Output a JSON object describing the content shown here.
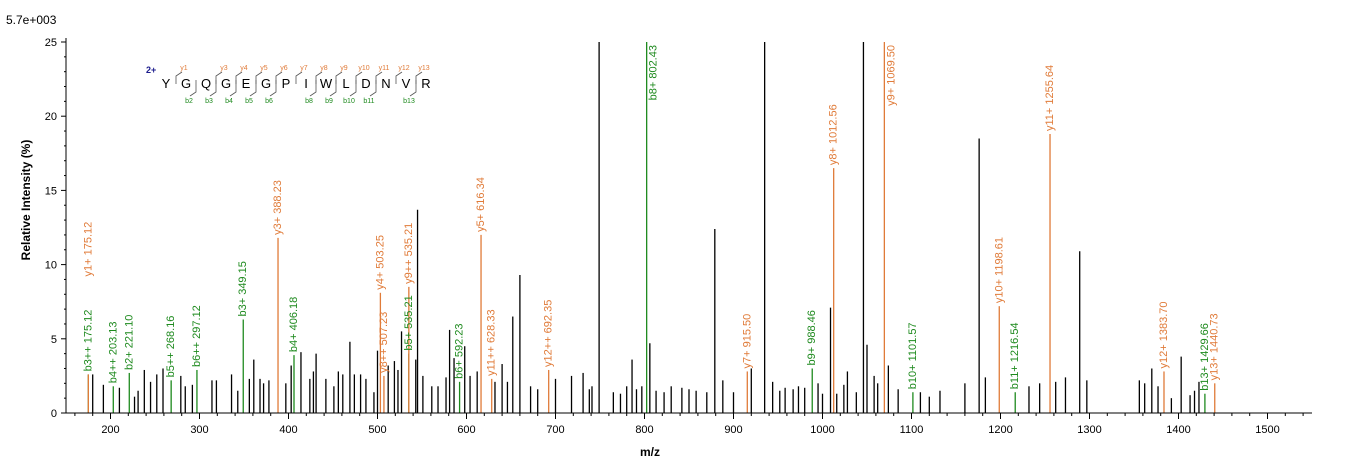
{
  "chart_data": {
    "type": "bar",
    "scale_label": "5.7e+003",
    "xlabel": "m/z",
    "ylabel": "Relative  Intensity (%)",
    "xlim": [
      150,
      1550
    ],
    "ylim": [
      0,
      25
    ],
    "xticks": [
      200,
      300,
      400,
      500,
      600,
      700,
      800,
      900,
      1000,
      1100,
      1200,
      1300,
      1400,
      1500
    ],
    "yticks": [
      0,
      5,
      10,
      15,
      20,
      25
    ],
    "colors": {
      "b_ion": "#1e8a1e",
      "y_ion": "#e07b39",
      "unassigned": "#000000",
      "charge": "#1a1a8c"
    },
    "sequence": {
      "charge": "2+",
      "residues": [
        "Y",
        "G",
        "Q",
        "G",
        "E",
        "G",
        "P",
        "I",
        "W",
        "L",
        "D",
        "N",
        "V",
        "R"
      ],
      "b_labels": [
        "b2",
        "b3",
        "b4",
        "b5",
        "b6",
        "b8",
        "b9",
        "b10",
        "b11",
        "b13"
      ],
      "b_positions": [
        2,
        3,
        4,
        5,
        6,
        8,
        9,
        10,
        11,
        13
      ],
      "y_labels": [
        "y13",
        "y12",
        "y11",
        "y10",
        "y9",
        "y8",
        "y7",
        "y6",
        "y5",
        "y4",
        "y3",
        "y1"
      ],
      "y_positions": [
        1,
        2,
        3,
        4,
        5,
        6,
        7,
        8,
        9,
        10,
        11,
        13
      ]
    },
    "annotated_peaks": [
      {
        "mz": 175.12,
        "intensity": 2.6,
        "ion": "b",
        "label": "b3++ 175.12"
      },
      {
        "mz": 175.12,
        "intensity": 2.6,
        "ion": "y",
        "label": "y1+ 175.12",
        "label_height": 9.0
      },
      {
        "mz": 203.13,
        "intensity": 1.8,
        "ion": "b",
        "label": "b4++ 203.13"
      },
      {
        "mz": 221.1,
        "intensity": 2.7,
        "ion": "b",
        "label": "b2+ 221.10"
      },
      {
        "mz": 268.16,
        "intensity": 2.2,
        "ion": "b",
        "label": "b5++ 268.16"
      },
      {
        "mz": 297.12,
        "intensity": 2.9,
        "ion": "b",
        "label": "b6++ 297.12"
      },
      {
        "mz": 349.15,
        "intensity": 6.3,
        "ion": "b",
        "label": "b3+ 349.15"
      },
      {
        "mz": 388.23,
        "intensity": 11.8,
        "ion": "y",
        "label": "y3+ 388.23"
      },
      {
        "mz": 406.18,
        "intensity": 3.9,
        "ion": "b",
        "label": "b4+ 406.18"
      },
      {
        "mz": 503.25,
        "intensity": 8.1,
        "ion": "y",
        "label": "y4+ 503.25"
      },
      {
        "mz": 507.23,
        "intensity": 2.5,
        "ion": "y",
        "label": "y8++ 507.23"
      },
      {
        "mz": 535.21,
        "intensity": 4.0,
        "ion": "b",
        "label": "b5+ 535.21"
      },
      {
        "mz": 535.21,
        "intensity": 8.5,
        "ion": "y",
        "label": "y9++ 535.21"
      },
      {
        "mz": 592.23,
        "intensity": 2.1,
        "ion": "b",
        "label": "b6+ 592.23"
      },
      {
        "mz": 616.34,
        "intensity": 12.0,
        "ion": "y",
        "label": "y5+ 616.34"
      },
      {
        "mz": 628.33,
        "intensity": 2.3,
        "ion": "y",
        "label": "y11++ 628.33"
      },
      {
        "mz": 692.35,
        "intensity": 2.9,
        "ion": "y",
        "label": "y12++ 692.35"
      },
      {
        "mz": 802.43,
        "intensity": 25.0,
        "ion": "b",
        "label": "b8+ 802.43"
      },
      {
        "mz": 915.5,
        "intensity": 2.8,
        "ion": "y",
        "label": "y7+ 915.50"
      },
      {
        "mz": 988.46,
        "intensity": 3.0,
        "ion": "b",
        "label": "b9+ 988.46"
      },
      {
        "mz": 1012.56,
        "intensity": 16.5,
        "ion": "y",
        "label": "y8+ 1012.56"
      },
      {
        "mz": 1069.5,
        "intensity": 25.0,
        "ion": "y",
        "label": "y9+ 1069.50"
      },
      {
        "mz": 1101.57,
        "intensity": 1.4,
        "ion": "b",
        "label": "b10+ 1101.57"
      },
      {
        "mz": 1198.61,
        "intensity": 7.2,
        "ion": "y",
        "label": "y10+ 1198.61"
      },
      {
        "mz": 1216.54,
        "intensity": 1.4,
        "ion": "b",
        "label": "b11+ 1216.54"
      },
      {
        "mz": 1255.64,
        "intensity": 18.8,
        "ion": "y",
        "label": "y11+ 1255.64"
      },
      {
        "mz": 1383.7,
        "intensity": 2.8,
        "ion": "y",
        "label": "y12+ 1383.70"
      },
      {
        "mz": 1429.66,
        "intensity": 1.3,
        "ion": "b",
        "label": "b13+ 1429.66"
      },
      {
        "mz": 1440.73,
        "intensity": 2.0,
        "ion": "y",
        "label": "y13+ 1440.73"
      }
    ],
    "unassigned_peaks": [
      [
        180,
        2.6
      ],
      [
        192,
        1.9
      ],
      [
        210,
        1.7
      ],
      [
        227,
        1.1
      ],
      [
        231,
        1.5
      ],
      [
        238,
        2.9
      ],
      [
        245,
        2.1
      ],
      [
        252,
        2.6
      ],
      [
        259,
        3.0
      ],
      [
        279,
        2.5
      ],
      [
        284,
        1.8
      ],
      [
        292,
        1.9
      ],
      [
        314,
        2.2
      ],
      [
        319,
        2.2
      ],
      [
        336,
        2.6
      ],
      [
        343,
        1.5
      ],
      [
        356,
        2.3
      ],
      [
        361,
        3.6
      ],
      [
        368,
        2.3
      ],
      [
        372,
        2.0
      ],
      [
        378,
        2.2
      ],
      [
        397,
        2.0
      ],
      [
        403,
        3.2
      ],
      [
        414,
        4.1
      ],
      [
        424,
        2.3
      ],
      [
        428,
        2.8
      ],
      [
        431,
        4.0
      ],
      [
        442,
        2.3
      ],
      [
        451,
        1.8
      ],
      [
        456,
        2.8
      ],
      [
        461,
        2.6
      ],
      [
        469,
        4.8
      ],
      [
        474,
        2.6
      ],
      [
        481,
        2.6
      ],
      [
        487,
        2.3
      ],
      [
        496,
        1.4
      ],
      [
        500,
        4.2
      ],
      [
        512,
        3.2
      ],
      [
        519,
        3.5
      ],
      [
        523,
        2.9
      ],
      [
        527,
        5.5
      ],
      [
        543,
        3.6
      ],
      [
        545,
        13.7
      ],
      [
        551,
        2.5
      ],
      [
        561,
        1.8
      ],
      [
        568,
        1.8
      ],
      [
        577,
        2.4
      ],
      [
        581,
        5.6
      ],
      [
        586,
        3.7
      ],
      [
        598,
        4.5
      ],
      [
        604,
        2.5
      ],
      [
        612,
        2.8
      ],
      [
        632,
        2.1
      ],
      [
        640,
        3.3
      ],
      [
        646,
        2.1
      ],
      [
        652,
        6.5
      ],
      [
        660,
        9.3
      ],
      [
        672,
        1.8
      ],
      [
        680,
        1.6
      ],
      [
        700,
        2.3
      ],
      [
        718,
        2.5
      ],
      [
        731,
        2.7
      ],
      [
        738,
        1.6
      ],
      [
        741,
        1.8
      ],
      [
        749,
        25.0
      ],
      [
        765,
        1.4
      ],
      [
        773,
        1.3
      ],
      [
        780,
        1.8
      ],
      [
        786,
        3.6
      ],
      [
        791,
        1.6
      ],
      [
        797,
        1.8
      ],
      [
        806,
        4.7
      ],
      [
        813,
        1.5
      ],
      [
        822,
        1.4
      ],
      [
        830,
        1.8
      ],
      [
        842,
        1.7
      ],
      [
        850,
        1.6
      ],
      [
        858,
        1.5
      ],
      [
        870,
        1.4
      ],
      [
        879,
        12.4
      ],
      [
        888,
        2.2
      ],
      [
        900,
        1.4
      ],
      [
        920,
        3.0
      ],
      [
        935,
        25.0
      ],
      [
        944,
        2.1
      ],
      [
        952,
        1.5
      ],
      [
        958,
        1.7
      ],
      [
        967,
        1.6
      ],
      [
        973,
        1.8
      ],
      [
        980,
        1.7
      ],
      [
        995,
        2.0
      ],
      [
        1000,
        1.3
      ],
      [
        1009,
        7.1
      ],
      [
        1016,
        1.3
      ],
      [
        1024,
        1.9
      ],
      [
        1028,
        2.8
      ],
      [
        1038,
        1.4
      ],
      [
        1046,
        25.0
      ],
      [
        1050,
        4.6
      ],
      [
        1058,
        2.5
      ],
      [
        1062,
        2.0
      ],
      [
        1074,
        3.2
      ],
      [
        1085,
        1.6
      ],
      [
        1110,
        1.4
      ],
      [
        1120,
        1.1
      ],
      [
        1132,
        1.5
      ],
      [
        1160,
        2.0
      ],
      [
        1176,
        18.5
      ],
      [
        1183,
        2.4
      ],
      [
        1232,
        1.8
      ],
      [
        1244,
        2.0
      ],
      [
        1262,
        2.1
      ],
      [
        1273,
        2.4
      ],
      [
        1289,
        10.9
      ],
      [
        1297,
        2.2
      ],
      [
        1356,
        2.2
      ],
      [
        1362,
        2.0
      ],
      [
        1370,
        3.0
      ],
      [
        1377,
        1.8
      ],
      [
        1392,
        1.0
      ],
      [
        1403,
        3.8
      ],
      [
        1413,
        1.2
      ],
      [
        1418,
        1.5
      ],
      [
        1423,
        2.1
      ]
    ]
  }
}
